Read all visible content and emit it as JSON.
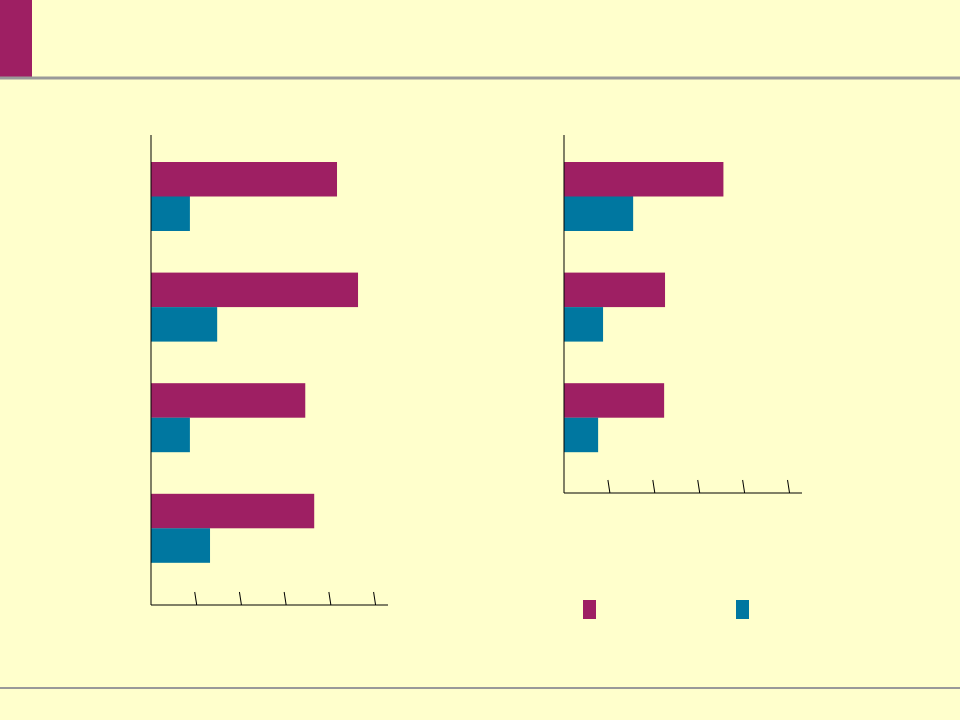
{
  "chart_data": [
    {
      "type": "bar",
      "categories": [
        null,
        null,
        null,
        null
      ],
      "series": [
        {
          "color": "#9e1f63",
          "values": [
            4.16,
            4.63,
            3.45,
            3.65
          ]
        },
        {
          "color": "#0077a0",
          "values": [
            0.87,
            1.48,
            0.87,
            1.32
          ]
        }
      ],
      "xlim": [
        0,
        5.3
      ],
      "xticks": [
        1,
        2,
        3,
        4,
        5
      ]
    },
    {
      "type": "bar",
      "categories": [
        null,
        null,
        null
      ],
      "series": [
        {
          "color": "#9e1f63",
          "values": [
            3.55,
            2.25,
            2.23
          ]
        },
        {
          "color": "#0077a0",
          "values": [
            1.54,
            0.87,
            0.76
          ]
        }
      ],
      "xlim": [
        0,
        5.3
      ],
      "xticks": [
        1,
        2,
        3,
        4,
        5
      ],
      "legend": true
    }
  ]
}
